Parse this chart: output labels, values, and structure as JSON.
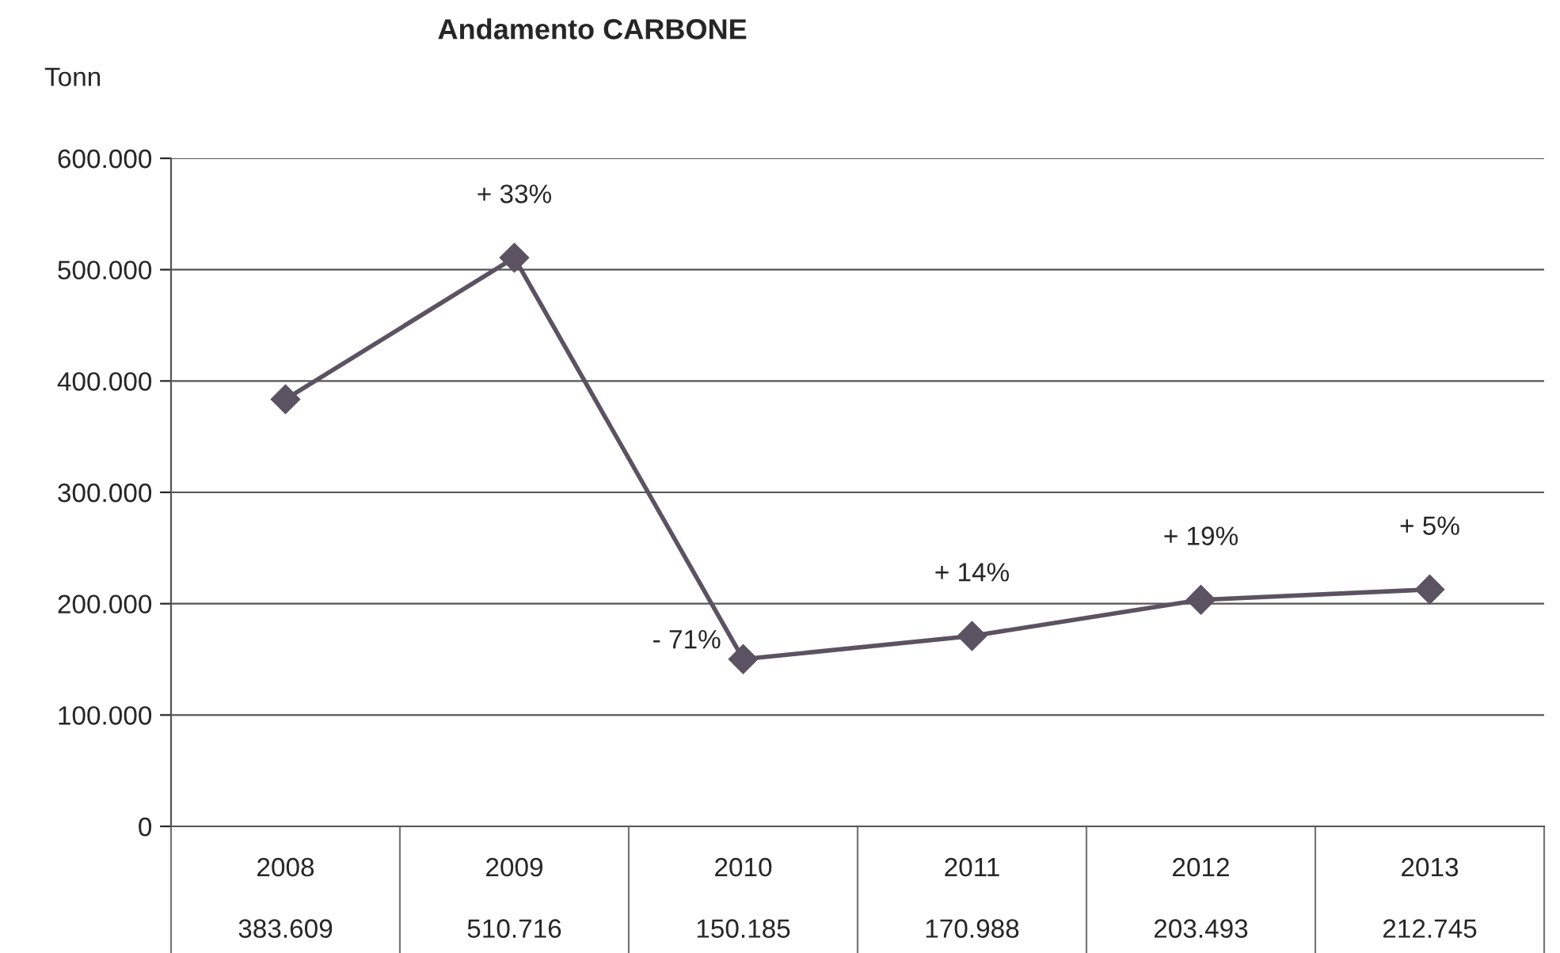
{
  "chart_data": {
    "type": "line",
    "title": "Andamento CARBONE",
    "ylabel": "Tonn",
    "categories": [
      "2008",
      "2009",
      "2010",
      "2011",
      "2012",
      "2013"
    ],
    "series": [
      {
        "color": "#5b5262",
        "values": [
          383609,
          510716,
          150185,
          170988,
          203493,
          212745
        ],
        "value_labels": [
          "383.609",
          "510.716",
          "150.185",
          "170.988",
          "203.493",
          "212.745"
        ]
      }
    ],
    "ylim": [
      0,
      600000
    ],
    "yticks": [
      {
        "value": 0,
        "label": "0"
      },
      {
        "value": 100000,
        "label": "100.000"
      },
      {
        "value": 200000,
        "label": "200.000"
      },
      {
        "value": 300000,
        "label": "300.000"
      },
      {
        "value": 400000,
        "label": "400.000"
      },
      {
        "value": 500000,
        "label": "500.000"
      },
      {
        "value": 600000,
        "label": "600.000"
      }
    ],
    "annotations": [
      {
        "text": "+ 33%",
        "x": "2009",
        "y": 510716
      },
      {
        "text": "- 71%",
        "x": "2010",
        "y": 150185
      },
      {
        "text": "+ 14%",
        "x": "2011",
        "y": 170988
      },
      {
        "text": "+ 19%",
        "x": "2012",
        "y": 203493
      },
      {
        "text": "+ 5%",
        "x": "2013",
        "y": 212745
      }
    ],
    "grid": "y",
    "marker": "diamond",
    "line_style": "solid",
    "legend": false
  }
}
